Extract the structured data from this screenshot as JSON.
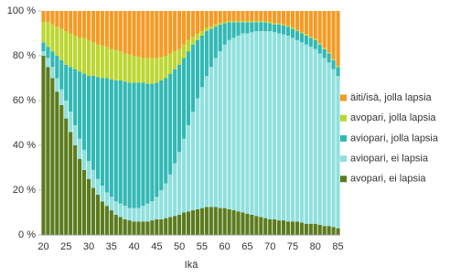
{
  "chart_data": {
    "type": "stacked_bar",
    "x_label": "Ikä",
    "categories": [
      "20",
      null,
      null,
      null,
      null,
      "25",
      null,
      null,
      null,
      null,
      "30",
      null,
      null,
      null,
      null,
      "35",
      null,
      null,
      null,
      null,
      "40",
      null,
      null,
      null,
      null,
      "45",
      null,
      null,
      null,
      null,
      "50",
      null,
      null,
      null,
      null,
      "55",
      null,
      null,
      null,
      null,
      "60",
      null,
      null,
      null,
      null,
      "65",
      null,
      null,
      null,
      null,
      "70",
      null,
      null,
      null,
      null,
      "75",
      null,
      null,
      null,
      null,
      "80",
      null,
      null,
      null,
      null,
      "85"
    ],
    "ylim": [
      0,
      100
    ],
    "yticks": [
      {
        "value": 0,
        "label": "0 %"
      },
      {
        "value": 20,
        "label": "20 %"
      },
      {
        "value": 40,
        "label": "40 %"
      },
      {
        "value": 60,
        "label": "60 %"
      },
      {
        "value": 80,
        "label": "80 %"
      },
      {
        "value": 100,
        "label": "100 %"
      }
    ],
    "legend": "right",
    "series": [
      {
        "name": "avopari, ei lapsia",
        "color": "#5c7b1e",
        "values": [
          80,
          75,
          70,
          64,
          58,
          52,
          46,
          40,
          34,
          29,
          25,
          21,
          18,
          15,
          13,
          11,
          9,
          8,
          7,
          6.5,
          6,
          6,
          6,
          6,
          6.5,
          7,
          7,
          7.5,
          8,
          8.5,
          9,
          10,
          10.5,
          11,
          11.5,
          12,
          12.5,
          12.5,
          12.5,
          12,
          12,
          11.5,
          11,
          10.5,
          10,
          9.5,
          9,
          8.5,
          8,
          7.5,
          7,
          7,
          6.5,
          6.5,
          6,
          6,
          6,
          5.5,
          5,
          5,
          5,
          4.5,
          4,
          4,
          3.5,
          3
        ]
      },
      {
        "name": "aviopari, ei lapsia",
        "color": "#8fe0dd",
        "values": [
          2,
          4,
          5,
          6,
          7,
          8,
          9,
          9,
          9,
          9,
          8,
          8,
          7,
          7,
          6,
          6,
          6,
          6,
          6,
          5.5,
          6,
          6,
          7,
          8,
          8.5,
          10,
          13,
          15.5,
          19,
          23.5,
          28,
          33,
          38.5,
          44,
          49.5,
          54,
          58.5,
          62.5,
          66.5,
          70,
          73,
          75.5,
          77,
          78.5,
          80,
          80.5,
          81.5,
          82.5,
          83,
          83.5,
          84,
          83.5,
          83.5,
          83,
          83,
          82,
          81,
          80.5,
          80,
          79,
          78,
          76.5,
          75,
          73,
          70.5,
          68
        ]
      },
      {
        "name": "aviopari, jolla lapsia",
        "color": "#32b8b4",
        "values": [
          4,
          5,
          7,
          10,
          13,
          16,
          20,
          25,
          30,
          34,
          38,
          42,
          45.5,
          48,
          51,
          52.5,
          54,
          55,
          55.5,
          56,
          56,
          56,
          55,
          53.5,
          52.5,
          51,
          49,
          47,
          45,
          42,
          39,
          36,
          33,
          30,
          26,
          23,
          20,
          17,
          14,
          12,
          9.5,
          8,
          7,
          6,
          5,
          5,
          4.5,
          4,
          4,
          4,
          3.5,
          3.5,
          4,
          4,
          4,
          4,
          4,
          4,
          4,
          4,
          4,
          4,
          4,
          4,
          4,
          4
        ]
      },
      {
        "name": "avopari, jolla lapsia",
        "color": "#bcd631",
        "values": [
          9,
          11,
          12,
          13,
          14,
          15,
          15,
          15,
          15,
          16,
          16,
          15,
          14.5,
          14.5,
          14,
          13.5,
          13.5,
          13,
          12.5,
          12.5,
          12,
          11.5,
          11,
          11.5,
          11.5,
          11,
          10.5,
          10,
          9,
          8,
          7,
          6,
          5,
          3.5,
          3,
          2,
          1.5,
          1,
          1,
          0.5,
          0.5,
          0.5,
          0.5,
          0.5,
          0.5,
          0.5,
          0.5,
          0.5,
          0.5,
          0.5,
          0.5,
          0.5,
          0.5,
          0.5,
          0.5,
          0.5,
          0.5,
          0.5,
          0.5,
          0.5,
          0.5,
          0.5,
          0.5,
          0.5,
          0.5,
          0.5
        ]
      },
      {
        "name": "äiti/isä, jolla lapsia",
        "color": "#f59a23",
        "values": [
          5,
          5,
          6,
          7,
          8,
          9,
          10,
          11,
          12,
          12,
          13,
          14,
          15,
          15.5,
          16,
          17,
          17.5,
          18,
          19,
          19.5,
          20,
          20.5,
          21,
          21,
          21,
          21,
          20.5,
          20,
          19,
          18,
          17,
          15,
          13,
          11.5,
          10,
          9,
          7.5,
          7,
          6,
          5.5,
          5,
          4.5,
          4.5,
          4.5,
          4.5,
          4.5,
          4.5,
          4.5,
          4.5,
          4.5,
          5,
          5.5,
          5.5,
          6,
          6.5,
          7.5,
          8.5,
          9.5,
          10.5,
          11.5,
          12.5,
          14.5,
          16.5,
          18.5,
          21.5,
          24.5
        ]
      }
    ]
  }
}
